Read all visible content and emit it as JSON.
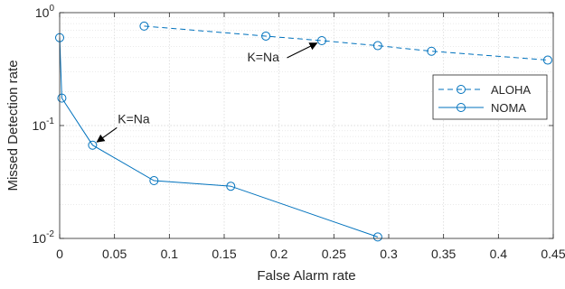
{
  "chart_data": {
    "type": "line",
    "xlabel": "False Alarm rate",
    "ylabel": "Missed Detection rate",
    "yscale": "log",
    "xlim": [
      0,
      0.45
    ],
    "ylim": [
      0.01,
      1
    ],
    "grid": true,
    "x_ticks": [
      {
        "value": 0,
        "label": "0"
      },
      {
        "value": 0.05,
        "label": "0.05"
      },
      {
        "value": 0.1,
        "label": "0.1"
      },
      {
        "value": 0.15,
        "label": "0.15"
      },
      {
        "value": 0.2,
        "label": "0.2"
      },
      {
        "value": 0.25,
        "label": "0.25"
      },
      {
        "value": 0.3,
        "label": "0.3"
      },
      {
        "value": 0.35,
        "label": "0.35"
      },
      {
        "value": 0.4,
        "label": "0.4"
      },
      {
        "value": 0.45,
        "label": "0.45"
      }
    ],
    "y_ticks": [
      {
        "value": 0.01,
        "base": "10",
        "exp": "-2"
      },
      {
        "value": 0.1,
        "base": "10",
        "exp": "-1"
      },
      {
        "value": 1,
        "base": "10",
        "exp": "0"
      }
    ],
    "legend_position": "right",
    "series": [
      {
        "name": "ALOHA",
        "color": "#0072BD",
        "line_style": "dashed",
        "marker": "circle",
        "points": [
          {
            "x": 0.077,
            "y": 0.76
          },
          {
            "x": 0.188,
            "y": 0.62
          },
          {
            "x": 0.239,
            "y": 0.565
          },
          {
            "x": 0.29,
            "y": 0.51
          },
          {
            "x": 0.339,
            "y": 0.455
          },
          {
            "x": 0.445,
            "y": 0.38
          }
        ]
      },
      {
        "name": "NOMA",
        "color": "#0072BD",
        "line_style": "solid",
        "marker": "circle",
        "points": [
          {
            "x": 0.0,
            "y": 0.6
          },
          {
            "x": 0.002,
            "y": 0.175
          },
          {
            "x": 0.03,
            "y": 0.067
          },
          {
            "x": 0.086,
            "y": 0.0325
          },
          {
            "x": 0.156,
            "y": 0.029
          },
          {
            "x": 0.29,
            "y": 0.0103
          }
        ]
      }
    ],
    "annotations": [
      {
        "text": "K=Na",
        "target": {
          "x": 0.239,
          "y": 0.565
        },
        "label_at": {
          "x": 0.171,
          "y": 0.37
        }
      },
      {
        "text": "K=Na",
        "target": {
          "x": 0.03,
          "y": 0.067
        },
        "label_at": {
          "x": 0.053,
          "y": 0.105
        }
      }
    ]
  }
}
